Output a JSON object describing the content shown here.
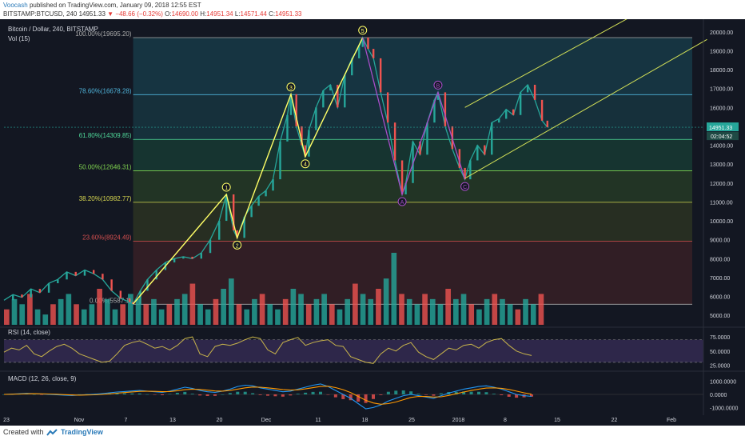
{
  "header": {
    "author": "Voocash",
    "published": "published on TradingView.com, January 09, 2018 12:55 EST",
    "symbol": "BITSTAMP:BTCUSD, 240",
    "last": "14951.33",
    "change": "▼ −48.66 (−0.32%)",
    "o_label": "O:",
    "o_val": "14690.00",
    "h_label": "H:",
    "h_val": "14951.34",
    "l_label": "L:",
    "l_val": "14571.44",
    "c_label": "C:",
    "c_val": "14951.33"
  },
  "footer": {
    "created": "Created with",
    "brand": "TradingView"
  },
  "colors": {
    "background": "#131722",
    "up": "#26a69a",
    "down": "#ef5350",
    "wave": "#ffff66",
    "abc": "#a64dc7",
    "channel": "#d4e157",
    "rsi": "#c8b44a",
    "macd": "#2196f3",
    "signal": "#ff9800"
  },
  "chart_data": {
    "type": "line",
    "title": "Bitcoin / Dollar, 240, BITSTAMP",
    "volume_label": "Vol (15)",
    "price_axis": {
      "ylim": [
        4500,
        20500
      ],
      "ticks": [
        5000,
        6000,
        7000,
        8000,
        9000,
        10000,
        11000,
        12000,
        13000,
        14000,
        15000,
        16000,
        17000,
        18000,
        19000,
        20000
      ],
      "tick_labels": [
        "5000.00",
        "6000.00",
        "7000.00",
        "8000.00",
        "9000.00",
        "10000.00",
        "11000.00",
        "12000.00",
        "13000.00",
        "14000.00",
        "15000.00",
        "16000.00",
        "17000.00",
        "18000.00",
        "19000.00",
        "20000.00"
      ],
      "current_price_label": "14951.33",
      "countdown_label": "02:04:52",
      "current_price": 14951.33
    },
    "x_axis": {
      "labels": [
        "23",
        "Nov",
        "7",
        "13",
        "20",
        "Dec",
        "11",
        "18",
        "25",
        "2018",
        "8",
        "15",
        "22",
        "Feb"
      ]
    },
    "price_series": {
      "name": "BTCUSD",
      "points": [
        [
          0,
          5800
        ],
        [
          5,
          6100
        ],
        [
          10,
          5950
        ],
        [
          15,
          6400
        ],
        [
          20,
          6200
        ],
        [
          25,
          6700
        ],
        [
          30,
          6900
        ],
        [
          35,
          7300
        ],
        [
          40,
          7100
        ],
        [
          45,
          7400
        ],
        [
          50,
          7200
        ],
        [
          55,
          6900
        ],
        [
          60,
          6300
        ],
        [
          65,
          5900
        ],
        [
          70,
          5700
        ],
        [
          72,
          5600
        ],
        [
          76,
          6300
        ],
        [
          80,
          6900
        ],
        [
          85,
          7400
        ],
        [
          90,
          7800
        ],
        [
          95,
          8000
        ],
        [
          100,
          8100
        ],
        [
          105,
          8000
        ],
        [
          110,
          8300
        ],
        [
          115,
          9000
        ],
        [
          120,
          10000
        ],
        [
          124,
          11400
        ],
        [
          128,
          9500
        ],
        [
          130,
          9100
        ],
        [
          134,
          10200
        ],
        [
          138,
          10800
        ],
        [
          142,
          11300
        ],
        [
          146,
          11600
        ],
        [
          150,
          12200
        ],
        [
          154,
          14200
        ],
        [
          158,
          15600
        ],
        [
          160,
          16700
        ],
        [
          163,
          15000
        ],
        [
          166,
          14000
        ],
        [
          168,
          13400
        ],
        [
          170,
          14800
        ],
        [
          174,
          16000
        ],
        [
          178,
          16900
        ],
        [
          182,
          17200
        ],
        [
          186,
          16000
        ],
        [
          190,
          17700
        ],
        [
          194,
          18600
        ],
        [
          198,
          19200
        ],
        [
          200,
          19700
        ],
        [
          203,
          19100
        ],
        [
          206,
          18600
        ],
        [
          210,
          16800
        ],
        [
          214,
          15200
        ],
        [
          218,
          13200
        ],
        [
          222,
          11400
        ],
        [
          224,
          12000
        ],
        [
          228,
          14200
        ],
        [
          232,
          13500
        ],
        [
          236,
          15200
        ],
        [
          240,
          16400
        ],
        [
          242,
          16800
        ],
        [
          246,
          15000
        ],
        [
          250,
          13800
        ],
        [
          254,
          12800
        ],
        [
          257,
          12200
        ],
        [
          260,
          13200
        ],
        [
          264,
          14000
        ],
        [
          268,
          13500
        ],
        [
          272,
          15200
        ],
        [
          276,
          15400
        ],
        [
          280,
          15900
        ],
        [
          284,
          15600
        ],
        [
          288,
          16800
        ],
        [
          292,
          17200
        ],
        [
          296,
          16400
        ],
        [
          300,
          15300
        ],
        [
          303,
          14951
        ]
      ]
    },
    "volume_series": {
      "values": [
        3,
        5,
        4,
        6,
        3,
        2,
        4,
        5,
        6,
        4,
        3,
        4,
        7,
        5,
        3,
        4,
        6,
        5,
        4,
        5,
        3,
        4,
        5,
        6,
        8,
        4,
        3,
        5,
        7,
        9,
        4,
        3,
        5,
        6,
        4,
        3,
        5,
        7,
        6,
        4,
        5,
        6,
        4,
        3,
        5,
        8,
        6,
        5,
        7,
        9,
        14,
        6,
        5,
        4,
        6,
        5,
        4,
        7,
        5,
        6,
        4,
        3,
        5,
        6,
        5,
        4,
        3,
        5,
        4,
        6
      ]
    },
    "fibonacci": [
      {
        "label": "100.00%(19695.20)",
        "level": 19695.2
      },
      {
        "label": "78.60%(16678.28)",
        "level": 16678.28
      },
      {
        "label": "61.80%(14309.85)",
        "level": 14309.85
      },
      {
        "label": "50.00%(12646.31)",
        "level": 12646.31
      },
      {
        "label": "38.20%(10982.77)",
        "level": 10982.77
      },
      {
        "label": "23.60%(8924.49)",
        "level": 8924.49
      },
      {
        "label": "0.00%(5587.1)",
        "level": 5587.1
      }
    ],
    "elliott_waves": [
      {
        "label": "1",
        "x": 124,
        "y": 11400,
        "pos": "above"
      },
      {
        "label": "2",
        "x": 130,
        "y": 9100,
        "pos": "below"
      },
      {
        "label": "3",
        "x": 160,
        "y": 16700,
        "pos": "above"
      },
      {
        "label": "4",
        "x": 168,
        "y": 13400,
        "pos": "below"
      },
      {
        "label": "5",
        "x": 200,
        "y": 19700,
        "pos": "above"
      }
    ],
    "abc_waves": [
      {
        "label": "A",
        "x": 222,
        "y": 11400,
        "pos": "below"
      },
      {
        "label": "B",
        "x": 242,
        "y": 16800,
        "pos": "above"
      },
      {
        "label": "C",
        "x": 257,
        "y": 12200,
        "pos": "below"
      }
    ],
    "wave_start": {
      "x": 72,
      "y": 5600
    },
    "channel": {
      "lower": [
        [
          257,
          12250
        ],
        [
          392,
          19600
        ]
      ],
      "upper": [
        [
          257,
          16000
        ],
        [
          392,
          23000
        ]
      ]
    },
    "rsi": {
      "title": "RSI (14, close)",
      "ylim": [
        20,
        85
      ],
      "ticks": [
        75,
        50,
        25
      ],
      "tick_labels": [
        "75.0000",
        "50.0000",
        "25.0000"
      ],
      "band_upper": 70,
      "band_lower": 30,
      "values": [
        48,
        55,
        52,
        60,
        45,
        40,
        50,
        58,
        62,
        55,
        45,
        40,
        35,
        30,
        32,
        45,
        60,
        65,
        68,
        62,
        55,
        58,
        52,
        60,
        72,
        75,
        45,
        40,
        58,
        62,
        60,
        64,
        70,
        75,
        72,
        52,
        45,
        65,
        70,
        74,
        60,
        65,
        68,
        70,
        60,
        58,
        40,
        35,
        30,
        28,
        45,
        55,
        50,
        60,
        65,
        48,
        40,
        35,
        45,
        55,
        52,
        60,
        62,
        55,
        65,
        70,
        72,
        60,
        50,
        45,
        42
      ]
    },
    "macd": {
      "title": "MACD (12, 26, close, 9)",
      "ylim": [
        -1400,
        1400
      ],
      "ticks": [
        1000,
        0,
        -1000
      ],
      "tick_labels": [
        "1000.0000",
        "0.0000",
        "-1000.0000"
      ],
      "macd": [
        0,
        20,
        50,
        80,
        60,
        30,
        0,
        -30,
        -60,
        -80,
        -50,
        -20,
        10,
        60,
        120,
        180,
        220,
        260,
        300,
        250,
        200,
        150,
        250,
        400,
        550,
        450,
        300,
        200,
        150,
        250,
        400,
        600,
        700,
        650,
        500,
        400,
        300,
        200,
        250,
        400,
        550,
        700,
        800,
        600,
        300,
        0,
        -300,
        -700,
        -1100,
        -1000,
        -800,
        -500,
        -300,
        -100,
        0,
        -100,
        -200,
        -300,
        -100,
        100,
        250,
        400,
        500,
        600,
        650,
        550,
        400,
        200,
        0,
        -100,
        -150
      ],
      "signal": [
        0,
        10,
        30,
        50,
        55,
        45,
        30,
        10,
        -20,
        -45,
        -55,
        -45,
        -30,
        0,
        40,
        90,
        140,
        190,
        230,
        240,
        230,
        210,
        220,
        280,
        360,
        400,
        380,
        320,
        260,
        250,
        300,
        400,
        500,
        560,
        550,
        500,
        440,
        370,
        330,
        350,
        420,
        510,
        600,
        620,
        520,
        360,
        140,
        -150,
        -450,
        -650,
        -750,
        -700,
        -580,
        -400,
        -230,
        -150,
        -160,
        -200,
        -180,
        -80,
        50,
        180,
        300,
        400,
        480,
        500,
        460,
        380,
        250,
        120,
        20
      ],
      "histogram": [
        0,
        10,
        20,
        30,
        5,
        -15,
        -30,
        -40,
        -40,
        -35,
        5,
        25,
        40,
        60,
        80,
        90,
        80,
        70,
        70,
        10,
        -30,
        -60,
        30,
        120,
        190,
        50,
        -80,
        -120,
        -110,
        0,
        100,
        200,
        200,
        90,
        -50,
        -100,
        -140,
        -170,
        -80,
        50,
        130,
        190,
        200,
        -20,
        -220,
        -360,
        -440,
        -550,
        -650,
        -350,
        -50,
        200,
        280,
        300,
        230,
        50,
        -40,
        -100,
        80,
        180,
        200,
        220,
        200,
        200,
        170,
        50,
        -60,
        -180,
        -250,
        -220,
        -170
      ]
    }
  }
}
